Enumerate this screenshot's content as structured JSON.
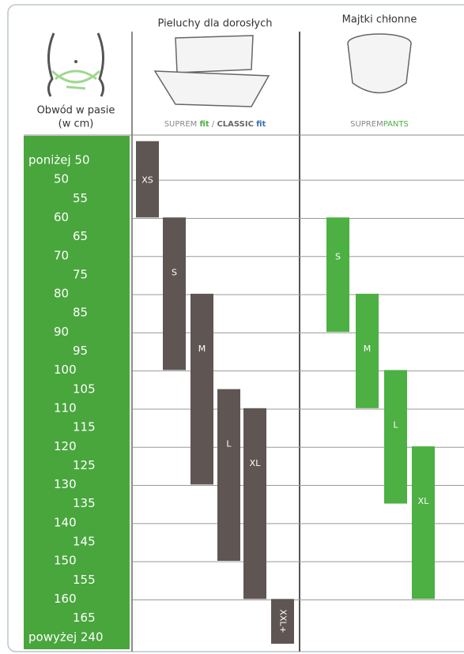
{
  "header": {
    "waist_title": "Obwód w pasie",
    "waist_unit": "(w cm)"
  },
  "products": [
    {
      "title": "Pieluchy dla dorosłych",
      "brand": [
        "SUPREM",
        "fit",
        "/",
        "CLASSIC",
        "fit"
      ],
      "color": "#5f5553",
      "sizes": [
        {
          "label": "XS",
          "from": 40,
          "to": 60
        },
        {
          "label": "S",
          "from": 60,
          "to": 100
        },
        {
          "label": "M",
          "from": 80,
          "to": 130
        },
        {
          "label": "L",
          "from": 105,
          "to": 150
        },
        {
          "label": "XL",
          "from": 110,
          "to": 160
        },
        {
          "label": "XXL+",
          "from": 160,
          "to": 240
        }
      ]
    },
    {
      "title": "Majtki chłonne",
      "brand": [
        "SUPREM",
        "PANTS"
      ],
      "color": "#4cb043",
      "sizes": [
        {
          "label": "S",
          "from": 60,
          "to": 90
        },
        {
          "label": "M",
          "from": 80,
          "to": 110
        },
        {
          "label": "L",
          "from": 100,
          "to": 135
        },
        {
          "label": "XL",
          "from": 120,
          "to": 160
        }
      ]
    }
  ],
  "rows": [
    "poniżej 50",
    "50",
    "55",
    "60",
    "65",
    "70",
    "75",
    "80",
    "85",
    "90",
    "95",
    "100",
    "105",
    "110",
    "115",
    "120",
    "125",
    "130",
    "135",
    "140",
    "145",
    "150",
    "155",
    "160",
    "165",
    "powyżej 240"
  ]
}
